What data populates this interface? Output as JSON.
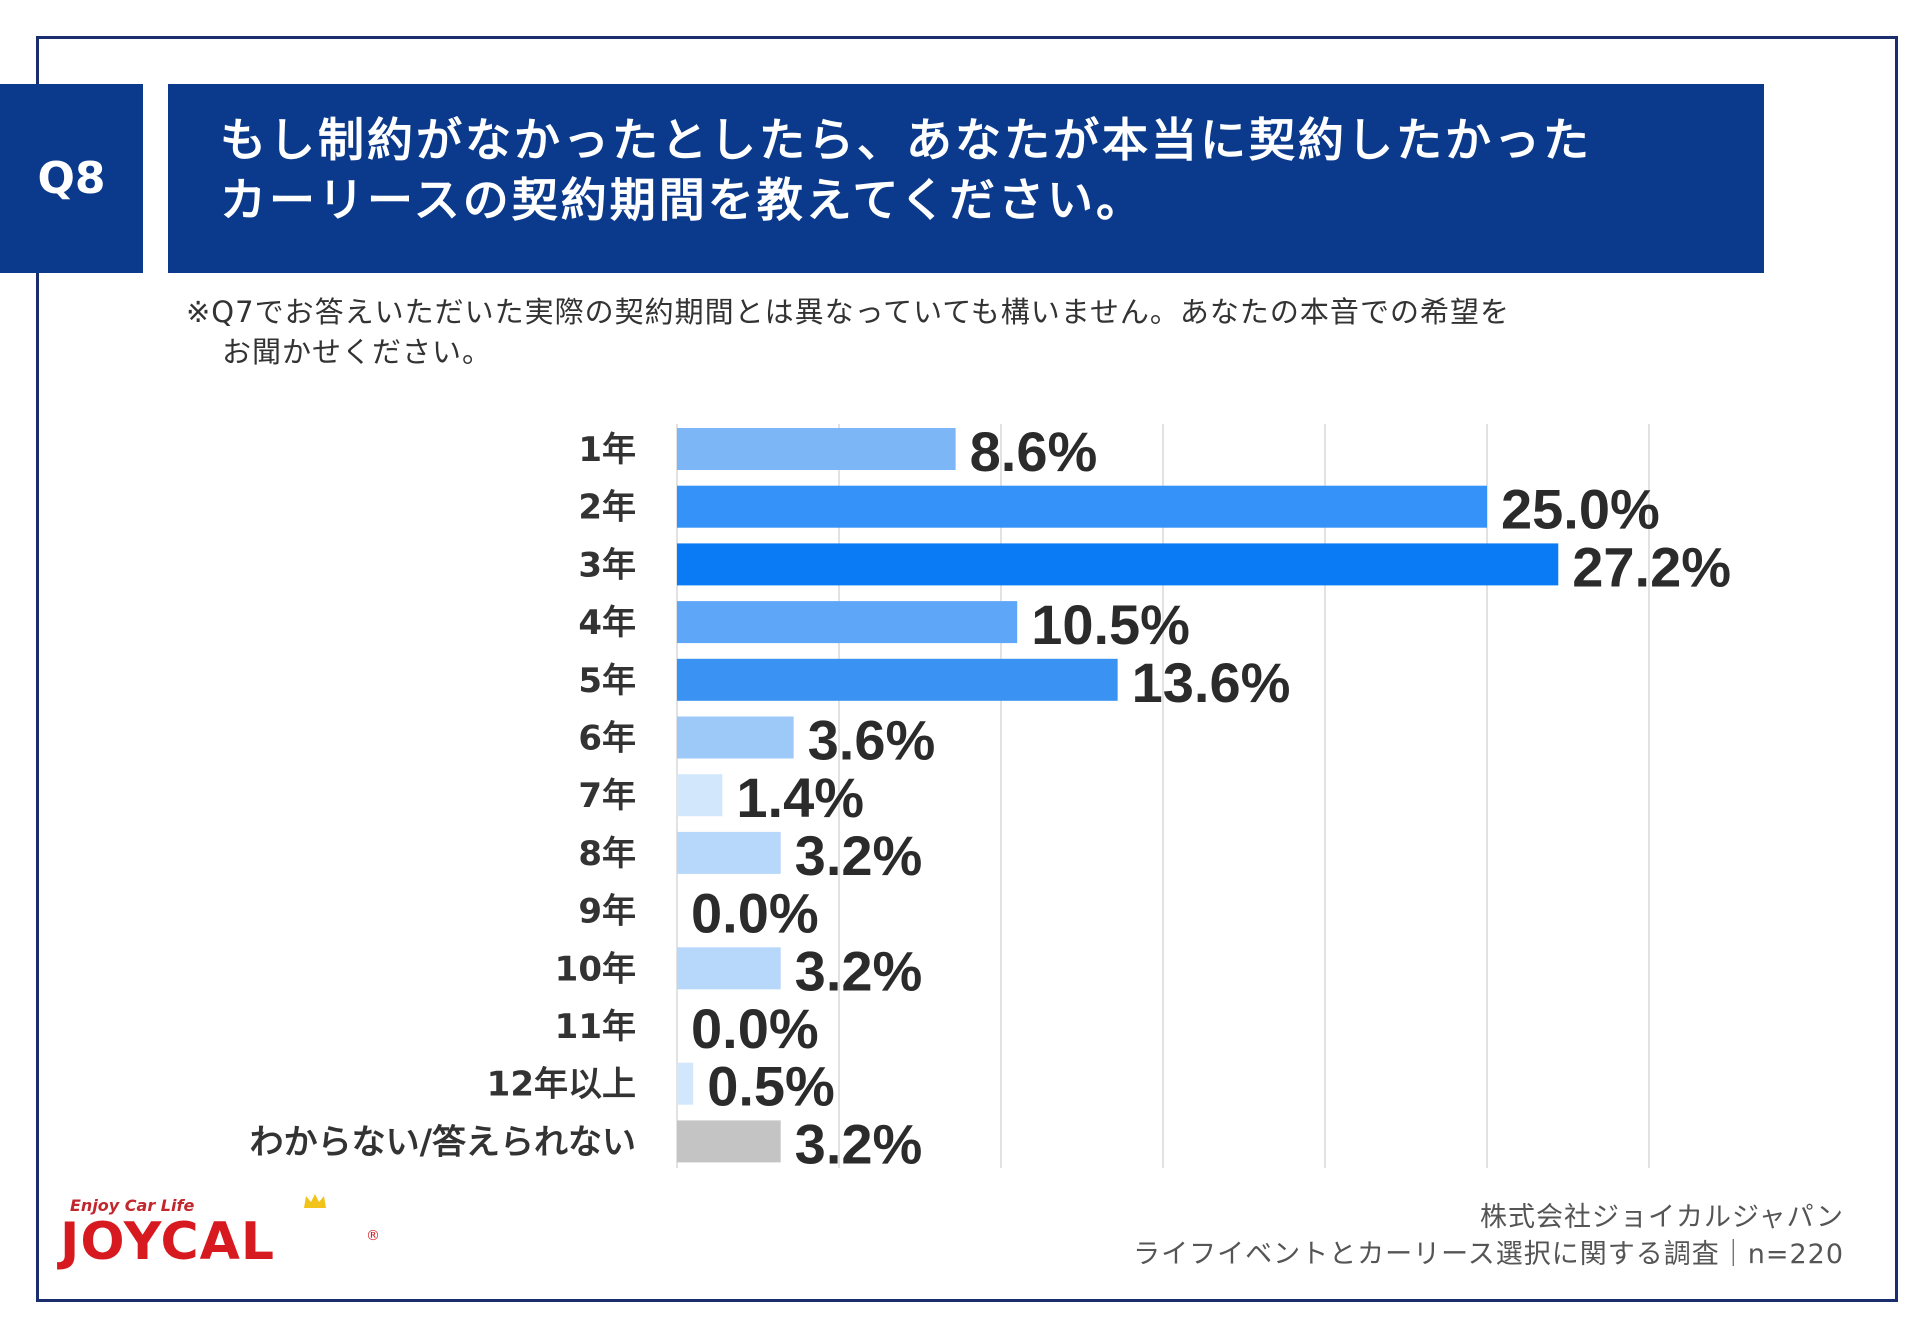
{
  "question": {
    "number": "Q8",
    "title_line1": "もし制約がなかったとしたら、あなたが本当に契約したかった",
    "title_line2": "カーリースの契約期間を教えてください。",
    "note_line1": "※Q7でお答えいただいた実際の契約期間とは異なっていても構いません。あなたの本音での希望を",
    "note_line2": "お聞かせください。"
  },
  "chart_data": {
    "type": "bar",
    "orientation": "horizontal",
    "categories": [
      "1年",
      "2年",
      "3年",
      "4年",
      "5年",
      "6年",
      "7年",
      "8年",
      "9年",
      "10年",
      "11年",
      "12年以上",
      "わからない/答えられない"
    ],
    "values": [
      8.6,
      25.0,
      27.2,
      10.5,
      13.6,
      3.6,
      1.4,
      3.2,
      0.0,
      3.2,
      0.0,
      0.5,
      3.2
    ],
    "value_labels": [
      "8.6%",
      "25.0%",
      "27.2%",
      "10.5%",
      "13.6%",
      "3.6%",
      "1.4%",
      "3.2%",
      "0.0%",
      "3.2%",
      "0.0%",
      "0.5%",
      "3.2%"
    ],
    "colors": [
      "#7cb6f7",
      "#3592f8",
      "#0a7bf4",
      "#5ea6f7",
      "#3a92f2",
      "#9dc9f9",
      "#d2e6fc",
      "#b7d8fb",
      "#d8e9fc",
      "#b7d8fb",
      "#d8e9fc",
      "#d2e6fc",
      "#c4c4c4"
    ],
    "xlim": [
      0,
      30
    ],
    "grid": true,
    "legend": "none"
  },
  "footer": {
    "company": "株式会社ジョイカルジャパン",
    "survey": "ライフイベントとカーリース選択に関する調査｜n=220"
  },
  "logo": {
    "tagline": "Enjoy Car Life",
    "wordmark": "JOYCAL",
    "registered": "®"
  }
}
